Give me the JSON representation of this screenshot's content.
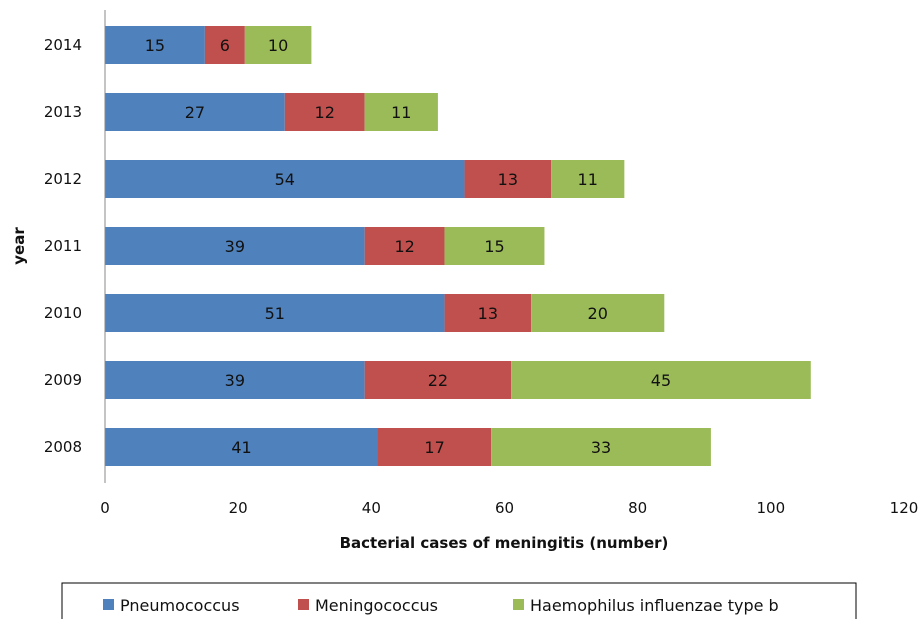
{
  "chart_data": {
    "type": "bar",
    "orientation": "horizontal",
    "stacked": true,
    "categories": [
      "2008",
      "2009",
      "2010",
      "2011",
      "2012",
      "2013",
      "2014"
    ],
    "series": [
      {
        "name": "Pneumococcus",
        "color": "#4f81bd",
        "values": [
          41,
          39,
          51,
          39,
          54,
          27,
          15
        ]
      },
      {
        "name": "Meningococcus",
        "color": "#c0504d",
        "values": [
          17,
          22,
          13,
          12,
          13,
          12,
          6
        ]
      },
      {
        "name": "Haemophilus influenzae type b",
        "color": "#9bbb59",
        "values": [
          33,
          45,
          20,
          15,
          11,
          11,
          10
        ]
      }
    ],
    "xlabel": "Bacterial cases of meningitis (number)",
    "ylabel": "year",
    "xlim": [
      0,
      120
    ],
    "xticks": [
      0,
      20,
      40,
      60,
      80,
      100,
      120
    ],
    "grid": false,
    "data_labels": true,
    "legend_position": "bottom"
  }
}
